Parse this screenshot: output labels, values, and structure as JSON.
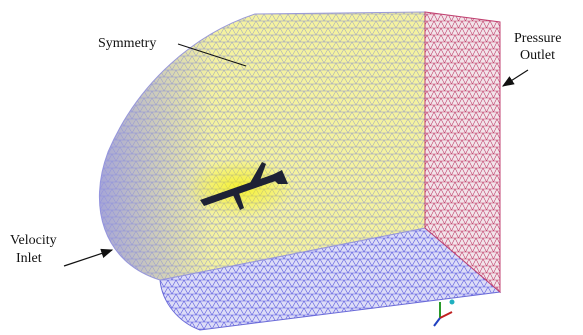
{
  "labels": {
    "symmetry": "Symmetry",
    "pressure_outlet": [
      "Pressure",
      "Outlet"
    ],
    "velocity_inlet": [
      "Velocity",
      "Inlet"
    ]
  }
}
